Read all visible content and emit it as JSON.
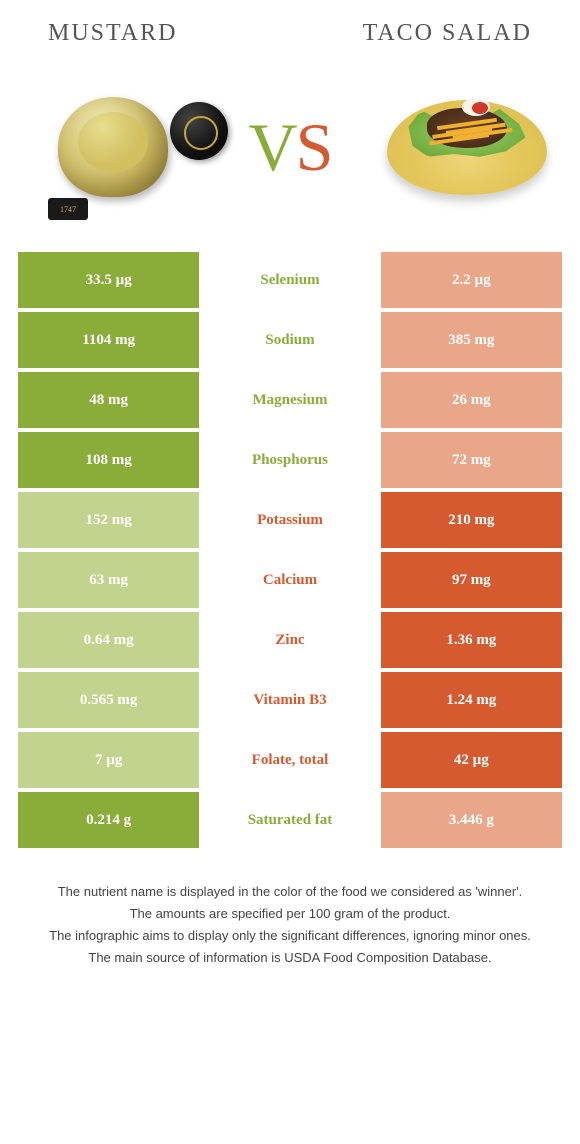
{
  "food_left": {
    "name": "Mustard"
  },
  "food_right": {
    "name": "Taco Salad"
  },
  "vs": {
    "v": "V",
    "s": "S"
  },
  "colors": {
    "left_winner": "#8aad3a",
    "left_loser": "#c2d38d",
    "right_winner": "#d65a2f",
    "right_loser": "#e9a689",
    "mid_left": "#8aad3a",
    "mid_right": "#d65a2f"
  },
  "rows": [
    {
      "nutrient": "Selenium",
      "left": "33.5 µg",
      "right": "2.2 µg",
      "winner": "left"
    },
    {
      "nutrient": "Sodium",
      "left": "1104 mg",
      "right": "385 mg",
      "winner": "left"
    },
    {
      "nutrient": "Magnesium",
      "left": "48 mg",
      "right": "26 mg",
      "winner": "left"
    },
    {
      "nutrient": "Phosphorus",
      "left": "108 mg",
      "right": "72 mg",
      "winner": "left"
    },
    {
      "nutrient": "Potassium",
      "left": "152 mg",
      "right": "210 mg",
      "winner": "right"
    },
    {
      "nutrient": "Calcium",
      "left": "63 mg",
      "right": "97 mg",
      "winner": "right"
    },
    {
      "nutrient": "Zinc",
      "left": "0.64 mg",
      "right": "1.36 mg",
      "winner": "right"
    },
    {
      "nutrient": "Vitamin B3",
      "left": "0.565 mg",
      "right": "1.24 mg",
      "winner": "right"
    },
    {
      "nutrient": "Folate, total",
      "left": "7 µg",
      "right": "42 µg",
      "winner": "right"
    },
    {
      "nutrient": "Saturated fat",
      "left": "0.214 g",
      "right": "3.446 g",
      "winner": "left"
    }
  ],
  "footnotes": [
    "The nutrient name is displayed in the color of the food we considered as 'winner'.",
    "The amounts are specified per 100 gram of the product.",
    "The infographic aims to display only the significant differences, ignoring minor ones.",
    "The main source of information is USDA Food Composition Database."
  ],
  "mustard_year": "1747"
}
